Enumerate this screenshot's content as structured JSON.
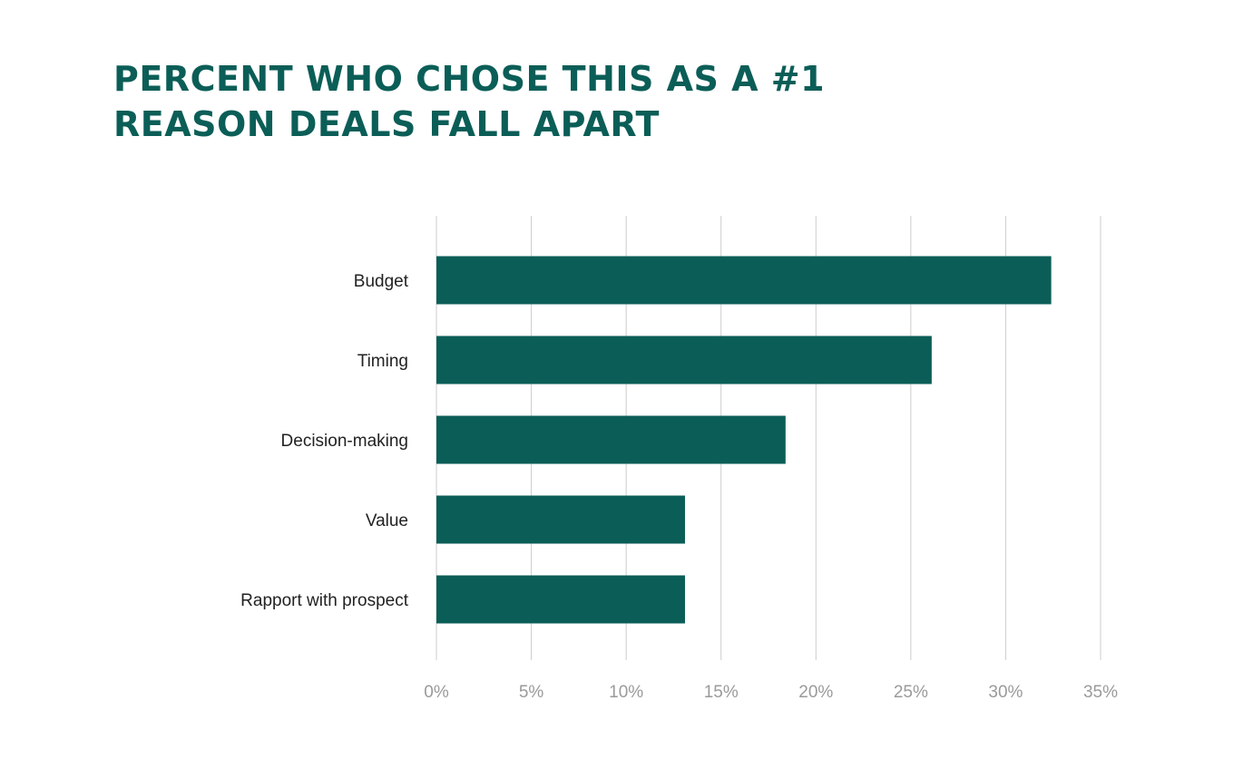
{
  "chart_data": {
    "type": "bar",
    "orientation": "horizontal",
    "title": "PERCENT WHO CHOSE THIS AS A #1\nREASON DEALS FALL APART",
    "categories": [
      "Budget",
      "Timing",
      "Decision-making",
      "Value",
      "Rapport with prospect"
    ],
    "values": [
      32.4,
      26.1,
      18.4,
      13.1,
      13.1
    ],
    "xlim": [
      0,
      35
    ],
    "x_ticks": [
      0,
      5,
      10,
      15,
      20,
      25,
      30,
      35
    ],
    "x_tick_labels": [
      "0%",
      "5%",
      "10%",
      "15%",
      "20%",
      "25%",
      "30%",
      "35%"
    ],
    "grid": "vertical",
    "colors": {
      "bar": "#0b5e57",
      "title": "#0b5e57",
      "grid": "#cccccc"
    }
  }
}
